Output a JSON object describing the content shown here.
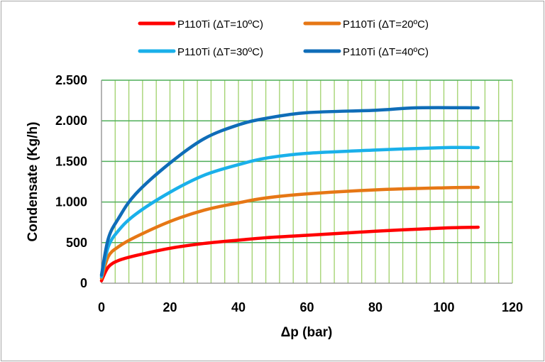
{
  "chart_data": {
    "type": "line",
    "title": "",
    "xlabel": "Δp (bar)",
    "ylabel": "Condensate (Kg/h)",
    "xlim": [
      0,
      120
    ],
    "ylim": [
      0,
      2500
    ],
    "xticks": [
      0,
      20,
      40,
      60,
      80,
      100,
      120
    ],
    "xtick_labels": [
      "0",
      "20",
      "40",
      "60",
      "80",
      "100",
      "120"
    ],
    "yticks": [
      0,
      500,
      1000,
      1500,
      2000,
      2500
    ],
    "ytick_labels": [
      "0",
      "500",
      "1.000",
      "1.500",
      "2.000",
      "2.500"
    ],
    "minor_x_grid_step": 4,
    "grid": true,
    "grid_colors": {
      "major_y": "#4fae5a",
      "minor_x": "#9fd16a"
    },
    "legend_placement": "top",
    "series": [
      {
        "name": "P110Ti (ΔT=10ºC)",
        "color": "#ff0000",
        "x": [
          0,
          2,
          5,
          10,
          20,
          30,
          40,
          48,
          60,
          80,
          100,
          110
        ],
        "y": [
          30,
          200,
          280,
          340,
          430,
          490,
          530,
          560,
          590,
          640,
          680,
          690
        ]
      },
      {
        "name": "P110Ti (ΔT=20ºC)",
        "color": "#e67715",
        "x": [
          0,
          2,
          5,
          10,
          20,
          30,
          40,
          48,
          60,
          80,
          100,
          110
        ],
        "y": [
          60,
          330,
          450,
          570,
          760,
          900,
          990,
          1050,
          1100,
          1150,
          1175,
          1180
        ]
      },
      {
        "name": "P110Ti (ΔT=30ºC)",
        "color": "#1ab0ea",
        "x": [
          0,
          2,
          5,
          10,
          20,
          30,
          40,
          48,
          60,
          80,
          100,
          110
        ],
        "y": [
          80,
          450,
          650,
          850,
          1120,
          1330,
          1460,
          1540,
          1600,
          1640,
          1670,
          1670
        ]
      },
      {
        "name": "P110Ti (ΔT=40ºC)",
        "color": "#0f6db8",
        "x": [
          0,
          2,
          5,
          10,
          20,
          30,
          40,
          48,
          60,
          80,
          92,
          110
        ],
        "y": [
          100,
          550,
          800,
          1100,
          1480,
          1780,
          1950,
          2030,
          2100,
          2130,
          2160,
          2160
        ]
      }
    ]
  }
}
